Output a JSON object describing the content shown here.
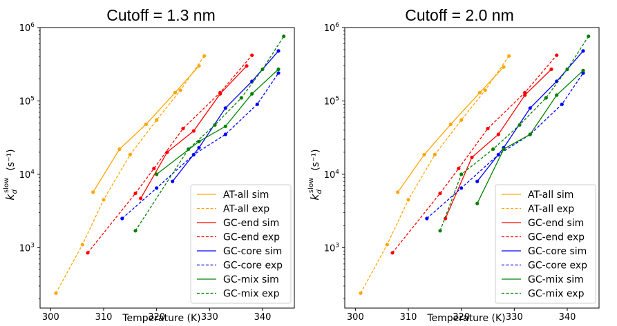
{
  "chart_data": [
    {
      "type": "line",
      "title": "Cutoff = 1.3 nm",
      "xlabel": "Temperature (K)",
      "ylabel_main": "k",
      "ylabel_sub": "d",
      "ylabel_sup": "slow",
      "ylabel_unit": "(s⁻¹)",
      "xlim": [
        298,
        346
      ],
      "ylog": true,
      "ylim": [
        150,
        1000000
      ],
      "xticks": [
        300,
        310,
        320,
        330,
        340
      ],
      "xtick_labels": [
        "300",
        "310",
        "320",
        "330",
        "340"
      ],
      "yticks": [
        1000,
        10000,
        100000,
        1000000
      ],
      "ytick_base": "10",
      "ytick_exps": [
        "3",
        "4",
        "5",
        "6"
      ],
      "legend_position": "lower-right",
      "series": [
        {
          "name": "AT-all sim",
          "color": "#FFA500",
          "dashed": false,
          "x": [
            308,
            313,
            318,
            323.5,
            328
          ],
          "y": [
            5700,
            22000,
            48000,
            130000,
            300000
          ]
        },
        {
          "name": "AT-all exp",
          "color": "#FFA500",
          "dashed": true,
          "x": [
            301,
            306,
            310,
            315,
            320,
            324.5,
            329
          ],
          "y": [
            240,
            1100,
            4500,
            18500,
            55000,
            140000,
            410000
          ]
        },
        {
          "name": "GC-end sim",
          "color": "#FF0000",
          "dashed": false,
          "x": [
            317,
            322,
            327,
            332,
            337
          ],
          "y": [
            4700,
            20000,
            39000,
            125000,
            300000
          ]
        },
        {
          "name": "GC-end exp",
          "color": "#FF0000",
          "dashed": true,
          "x": [
            307,
            316,
            319.5,
            325,
            332,
            338
          ],
          "y": [
            850,
            5500,
            12000,
            42000,
            130000,
            420000
          ]
        },
        {
          "name": "GC-core sim",
          "color": "#0000FF",
          "dashed": false,
          "x": [
            323,
            328,
            333,
            338,
            343
          ],
          "y": [
            8000,
            23000,
            80000,
            185000,
            480000
          ]
        },
        {
          "name": "GC-core exp",
          "color": "#0000FF",
          "dashed": true,
          "x": [
            313.5,
            320,
            327,
            333,
            339,
            343
          ],
          "y": [
            2500,
            6500,
            18500,
            35000,
            90000,
            240000
          ]
        },
        {
          "name": "GC-mix sim",
          "color": "#008000",
          "dashed": false,
          "x": [
            320,
            328,
            333,
            338,
            343
          ],
          "y": [
            10000,
            28000,
            45000,
            125000,
            270000
          ]
        },
        {
          "name": "GC-mix exp",
          "color": "#008000",
          "dashed": true,
          "x": [
            316,
            326,
            331,
            336,
            340,
            344
          ],
          "y": [
            1700,
            22000,
            47000,
            110000,
            270000,
            760000
          ]
        }
      ]
    },
    {
      "type": "line",
      "title": "Cutoff = 2.0 nm",
      "xlabel": "Temperature (K)",
      "ylabel_main": "k",
      "ylabel_sub": "d",
      "ylabel_sup": "slow",
      "ylabel_unit": "(s⁻¹)",
      "xlim": [
        298,
        346
      ],
      "ylog": true,
      "ylim": [
        150,
        1000000
      ],
      "xticks": [
        300,
        310,
        320,
        330,
        340
      ],
      "xtick_labels": [
        "300",
        "310",
        "320",
        "330",
        "340"
      ],
      "yticks": [
        1000,
        10000,
        100000,
        1000000
      ],
      "ytick_base": "10",
      "ytick_exps": [
        "3",
        "4",
        "5",
        "6"
      ],
      "legend_position": "lower-right",
      "series": [
        {
          "name": "AT-all sim",
          "color": "#FFA500",
          "dashed": false,
          "x": [
            308,
            313,
            318,
            323.5,
            328
          ],
          "y": [
            5700,
            18500,
            48000,
            130000,
            290000
          ]
        },
        {
          "name": "AT-all exp",
          "color": "#FFA500",
          "dashed": true,
          "x": [
            301,
            306,
            310,
            315,
            320,
            324.5,
            329
          ],
          "y": [
            240,
            1100,
            4500,
            18500,
            55000,
            140000,
            410000
          ]
        },
        {
          "name": "GC-end sim",
          "color": "#FF0000",
          "dashed": false,
          "x": [
            317,
            322,
            327,
            332,
            337
          ],
          "y": [
            2500,
            17000,
            35000,
            120000,
            270000
          ]
        },
        {
          "name": "GC-end exp",
          "color": "#FF0000",
          "dashed": true,
          "x": [
            307,
            316,
            319.5,
            325,
            332,
            338
          ],
          "y": [
            850,
            5500,
            12000,
            42000,
            130000,
            420000
          ]
        },
        {
          "name": "GC-core sim",
          "color": "#0000FF",
          "dashed": false,
          "x": [
            323,
            328,
            333,
            338,
            343
          ],
          "y": [
            8000,
            23000,
            80000,
            185000,
            480000
          ]
        },
        {
          "name": "GC-core exp",
          "color": "#0000FF",
          "dashed": true,
          "x": [
            313.5,
            320,
            327,
            333,
            339,
            343
          ],
          "y": [
            2500,
            6500,
            18500,
            35000,
            90000,
            240000
          ]
        },
        {
          "name": "GC-mix sim",
          "color": "#008000",
          "dashed": false,
          "x": [
            323,
            328,
            333,
            338,
            343
          ],
          "y": [
            4000,
            22000,
            35000,
            120000,
            260000
          ]
        },
        {
          "name": "GC-mix exp",
          "color": "#008000",
          "dashed": true,
          "x": [
            316,
            320,
            326,
            331,
            336,
            340,
            344
          ],
          "y": [
            1700,
            10000,
            22000,
            47000,
            110000,
            270000,
            760000
          ]
        }
      ]
    }
  ]
}
